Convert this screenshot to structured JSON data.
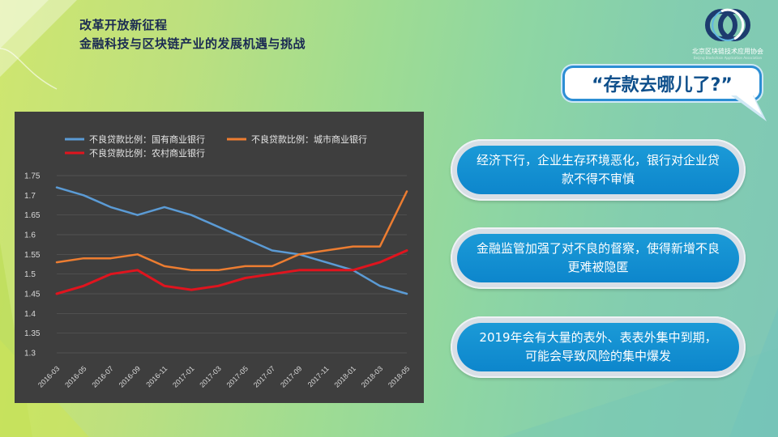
{
  "header": {
    "title_line1": "改革开放新征程",
    "title_line2": "金融科技与区块链产业的发展机遇与挑战"
  },
  "logo": {
    "icon": "interlocked-rings-logo",
    "org_name": "北京区块链技术应用协会",
    "org_name_en": "Beijing Blockchain Application Association"
  },
  "bubble": {
    "text": "“存款去哪儿了?”"
  },
  "cards": [
    {
      "text": "经济下行，企业生存环境恶化，银行对企业贷款不得不审慎"
    },
    {
      "text": "金融监管加强了对不良的督察，使得新增不良更难被隐匿"
    },
    {
      "text": "2019年会有大量的表外、表表外集中到期，可能会导致风险的集中爆发"
    }
  ],
  "colors": {
    "card_fill": "#1591d1",
    "title_text": "#1a2a52",
    "chart_bg": "#3e3e3e"
  },
  "chart_data": {
    "type": "line",
    "title": "",
    "xlabel": "",
    "ylabel": "",
    "ylim": [
      1.3,
      1.75
    ],
    "yticks": [
      "1.75",
      "1.7",
      "1.65",
      "1.6",
      "1.55",
      "1.5",
      "1.45",
      "1.4",
      "1.35",
      "1.3"
    ],
    "x": [
      "2016-03",
      "2016-05",
      "2016-07",
      "2016-09",
      "2016-11",
      "2017-01",
      "2017-03",
      "2017-05",
      "2017-07",
      "2017-09",
      "2017-11",
      "2018-01",
      "2018-03",
      "2018-05"
    ],
    "grid": true,
    "legend": "top",
    "series": [
      {
        "name": "不良贷款比例：国有商业银行",
        "color": "#5b9bd5",
        "values": [
          1.72,
          1.7,
          1.67,
          1.65,
          1.67,
          1.65,
          1.62,
          1.59,
          1.56,
          1.55,
          1.53,
          1.51,
          1.47,
          1.45
        ]
      },
      {
        "name": "不良贷款比例：城市商业银行",
        "color": "#ed7d31",
        "values": [
          1.53,
          1.54,
          1.54,
          1.55,
          1.52,
          1.51,
          1.51,
          1.52,
          1.52,
          1.55,
          1.56,
          1.57,
          1.57,
          1.71
        ]
      },
      {
        "name": "不良贷款比例：农村商业银行",
        "color": "#e0141e",
        "values": [
          1.45,
          1.47,
          1.5,
          1.51,
          1.47,
          1.46,
          1.47,
          1.49,
          1.5,
          1.51,
          1.51,
          1.51,
          1.53,
          1.56
        ]
      }
    ]
  }
}
